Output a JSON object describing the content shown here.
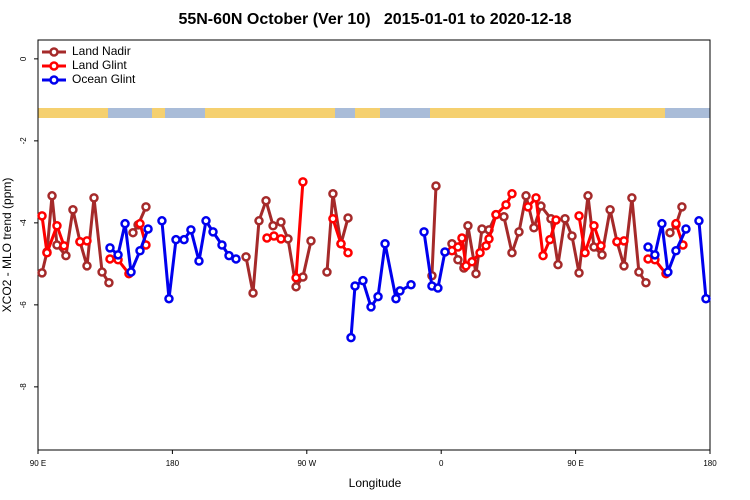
{
  "chart_data": {
    "type": "line",
    "title": "55N-60N October (Ver 10)   2015-01-01 to 2020-12-18",
    "x_label": "Longitude",
    "y_label": "XCO2 - MLO trend (ppm)",
    "xlim": [
      90,
      540
    ],
    "ylim": [
      -9.54,
      0.46
    ],
    "xticks": [
      {
        "value": 90,
        "label": "90 E"
      },
      {
        "value": 180,
        "label": "180"
      },
      {
        "value": 270,
        "label": "90 W"
      },
      {
        "value": 360,
        "label": "0"
      },
      {
        "value": 450,
        "label": "90 E"
      },
      {
        "value": 540,
        "label": "180"
      }
    ],
    "yticks": [
      0,
      -2,
      -4,
      -6,
      -8
    ],
    "legend": "top-left",
    "series": [
      {
        "name": "Land Nadir",
        "color": "#a52a2a",
        "x": [
          92.7,
          96.0,
          99.4,
          102.7,
          108.7,
          113.4,
          118.1,
          122.8,
          127.5,
          132.9,
          137.5,
          null,
          153.6,
          157.0,
          162.3,
          null,
          229.3,
          234.0,
          238.0,
          242.7,
          247.4,
          252.7,
          257.4,
          262.8,
          267.4,
          272.8,
          null,
          283.5,
          287.5,
          292.9,
          297.6,
          null,
          353.8,
          356.5,
          null,
          367.2,
          371.2,
          375.2,
          377.9,
          383.3,
          387.3,
          392.0,
          396.7,
          402.0,
          407.4,
          412.1,
          416.8,
          422.1,
          426.8,
          433.5,
          438.2,
          442.9,
          447.6,
          452.3,
          458.3,
          462.3,
          467.7,
          473.1,
          477.7,
          482.4,
          487.7,
          492.4,
          497.1,
          null,
          513.2,
          517.2,
          521.2
        ],
        "values": [
          -5.22,
          -4.71,
          -3.34,
          -4.54,
          -4.8,
          -3.68,
          -4.46,
          -5.05,
          -3.39,
          -5.2,
          -5.46,
          null,
          -4.24,
          -4.05,
          -3.61,
          null,
          -4.83,
          -5.71,
          -3.95,
          -3.46,
          -4.07,
          -3.98,
          -4.39,
          -5.56,
          -5.32,
          -4.44,
          null,
          -5.2,
          -3.29,
          -4.51,
          -3.88,
          null,
          -5.29,
          -3.1,
          null,
          -4.51,
          -4.9,
          -5.1,
          -4.07,
          -5.24,
          -4.15,
          -4.17,
          -3.8,
          -3.85,
          -4.73,
          -4.22,
          -3.34,
          -4.12,
          -3.59,
          -3.9,
          -5.02,
          -3.9,
          -4.32,
          -5.22,
          -3.34,
          -4.59,
          -4.78,
          -3.68,
          -4.46,
          -5.05,
          -3.39,
          -5.2,
          -5.46,
          null,
          -4.24,
          -4.05,
          -3.61
        ]
      },
      {
        "name": "Land Glint",
        "color": "#ff0000",
        "x": [
          92.7,
          96.0,
          102.7,
          107.4,
          null,
          118.1,
          122.8,
          null,
          138.2,
          143.6,
          150.9,
          null,
          158.3,
          162.3,
          null,
          243.3,
          248.0,
          252.7,
          null,
          262.8,
          267.4,
          null,
          287.5,
          292.9,
          297.6,
          null,
          367.2,
          371.2,
          373.9,
          376.6,
          380.6,
          386.0,
          390.0,
          392.0,
          396.7,
          403.4,
          407.4,
          null,
          418.1,
          423.5,
          428.2,
          432.8,
          436.9,
          null,
          452.3,
          456.3,
          462.3,
          467.0,
          null,
          477.7,
          482.4,
          null,
          498.5,
          503.1,
          510.5,
          null,
          517.2,
          521.9
        ],
        "values": [
          -3.83,
          -4.73,
          -4.07,
          -4.56,
          null,
          -4.46,
          -4.44,
          null,
          -4.88,
          -4.9,
          -5.24,
          null,
          -4.02,
          -4.54,
          null,
          -4.37,
          -4.32,
          -4.39,
          null,
          -5.34,
          -3.0,
          null,
          -3.9,
          -4.51,
          -4.73,
          null,
          -4.68,
          -4.59,
          -4.37,
          -5.05,
          -4.95,
          -4.73,
          -4.56,
          -4.39,
          -3.8,
          -3.56,
          -3.29,
          null,
          -3.61,
          -3.39,
          -4.8,
          -4.41,
          -3.93,
          null,
          -3.83,
          -4.73,
          -4.07,
          -4.56,
          null,
          -4.46,
          -4.44,
          null,
          -4.88,
          -4.9,
          -5.24,
          null,
          -4.02,
          -4.54
        ]
      },
      {
        "name": "Ocean Glint",
        "color": "#0000ee",
        "x": [
          138.2,
          143.6,
          148.3,
          152.3,
          158.3,
          163.7,
          null,
          173.0,
          177.7,
          182.4,
          187.8,
          192.4,
          197.8,
          202.5,
          207.2,
          213.2,
          217.9,
          222.6,
          null,
          299.6,
          302.3,
          307.6,
          313.0,
          317.7,
          322.4,
          329.7,
          332.4,
          339.8,
          null,
          348.5,
          353.8,
          357.8,
          362.5,
          null,
          498.5,
          503.1,
          507.8,
          511.8,
          517.2,
          523.9,
          null,
          532.6,
          537.3
        ],
        "values": [
          -4.61,
          -4.78,
          -4.02,
          -5.2,
          -4.68,
          -4.15,
          null,
          -3.95,
          -5.85,
          -4.41,
          -4.41,
          -4.17,
          -4.93,
          -3.95,
          -4.22,
          -4.54,
          -4.8,
          -4.88,
          null,
          -6.8,
          -5.54,
          -5.41,
          -6.05,
          -5.8,
          -4.51,
          -5.85,
          -5.66,
          -5.51,
          null,
          -4.22,
          -5.54,
          -5.59,
          -4.71,
          null,
          -4.59,
          -4.78,
          -4.02,
          -5.2,
          -4.68,
          -4.15,
          null,
          -3.95,
          -5.85
        ]
      }
    ]
  }
}
